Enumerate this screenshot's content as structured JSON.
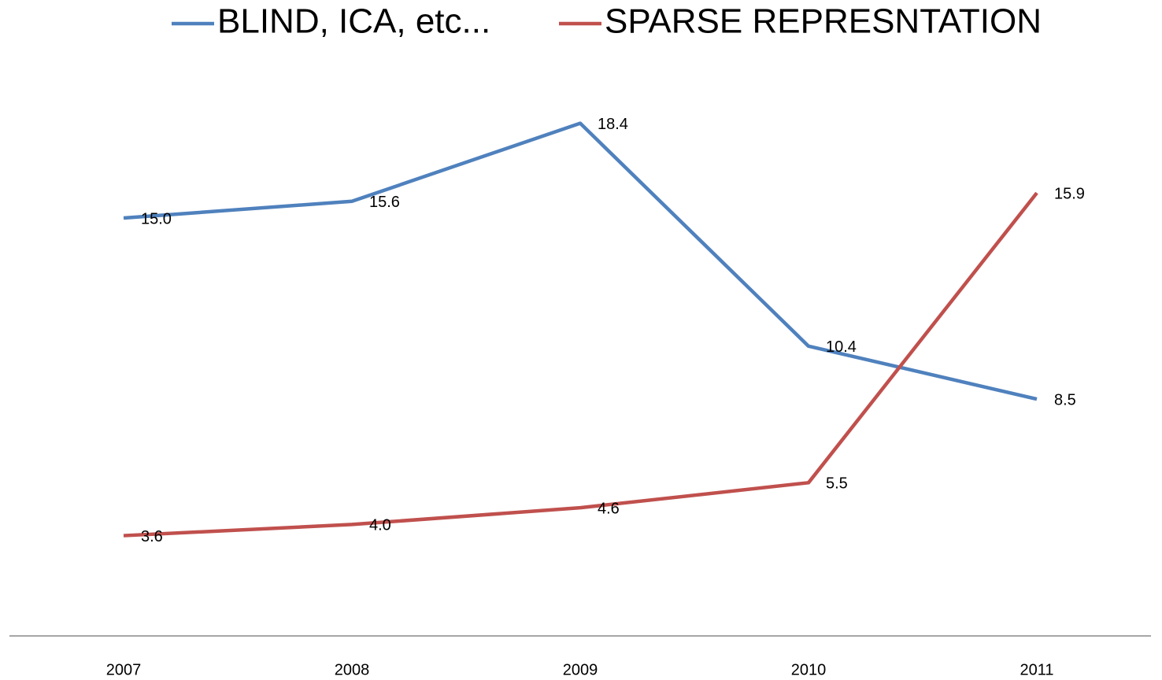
{
  "chart_data": {
    "type": "line",
    "categories": [
      "2007",
      "2008",
      "2009",
      "2010",
      "2011"
    ],
    "series": [
      {
        "name": "BLIND, ICA, etc...",
        "color": "#4f81bd",
        "values": [
          15.0,
          15.6,
          18.4,
          10.4,
          8.5
        ],
        "value_labels": [
          "15.0",
          "15.6",
          "18.4",
          "10.4",
          "8.5"
        ]
      },
      {
        "name": "SPARSE REPRESNTATION",
        "color": "#c0504d",
        "values": [
          3.6,
          4.0,
          4.6,
          5.5,
          15.9
        ],
        "value_labels": [
          "3.6",
          "4.0",
          "4.6",
          "5.5",
          "15.9"
        ]
      }
    ],
    "ylim": [
      0,
      20
    ],
    "legend": "top"
  }
}
